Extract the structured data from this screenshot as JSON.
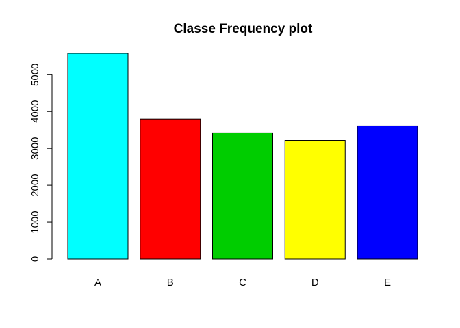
{
  "chart_data": {
    "type": "bar",
    "title": "Classe Frequency plot",
    "xlabel": "",
    "ylabel": "",
    "categories": [
      "A",
      "B",
      "C",
      "D",
      "E"
    ],
    "values": [
      5580,
      3797,
      3422,
      3216,
      3607
    ],
    "colors": [
      "#00ffff",
      "#ff0000",
      "#00cd00",
      "#ffff00",
      "#0000ff"
    ],
    "ylim": [
      0,
      5580
    ],
    "yticks": [
      0,
      1000,
      2000,
      3000,
      4000,
      5000
    ],
    "grid": false,
    "legend": "none"
  }
}
